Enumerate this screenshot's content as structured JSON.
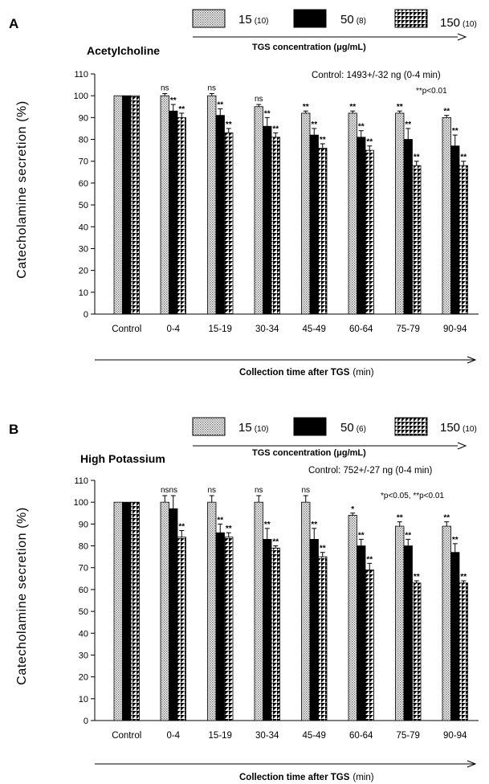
{
  "chart_data": [
    {
      "type": "bar",
      "panel": "A",
      "title": "Acetylcholine",
      "legend_title": "TGS  concentration  (μg/mL)",
      "legend": [
        {
          "name": "15",
          "n": "(10)"
        },
        {
          "name": "50",
          "n": "(8)"
        },
        {
          "name": "150",
          "n": "(10)"
        }
      ],
      "control_note": "Control: 1493+/-32 ng (0-4 min)",
      "p_note": "**p<0.01",
      "ylabel": "Catecholamine  secretion  (%)",
      "xlabel": "Collection time after TGS",
      "xlabel_unit": "(min)",
      "ylim": [
        0,
        110
      ],
      "yticks": [
        "0",
        "10",
        "20",
        "30",
        "40",
        "50",
        "60",
        "70",
        "80",
        "90",
        "100",
        "110"
      ],
      "control": {
        "label": "Control",
        "value": 100
      },
      "categories": [
        "0-4",
        "15-19",
        "30-34",
        "45-49",
        "60-64",
        "75-79",
        "90-94"
      ],
      "series": [
        {
          "name": "15",
          "values": [
            100,
            100,
            95,
            92,
            92,
            92,
            90
          ],
          "errors": [
            1,
            1,
            1,
            1,
            1,
            1,
            1
          ],
          "sig": [
            "ns",
            "ns",
            "ns",
            "**",
            "**",
            "**",
            "**"
          ]
        },
        {
          "name": "50",
          "values": [
            93,
            91,
            86,
            82,
            81,
            80,
            77
          ],
          "errors": [
            3,
            3,
            4,
            3,
            3,
            5,
            5
          ],
          "sig": [
            "**",
            "**",
            "**",
            "**",
            "**",
            "**",
            "**"
          ]
        },
        {
          "name": "150",
          "values": [
            90,
            83,
            81,
            76,
            75,
            68,
            68
          ],
          "errors": [
            2,
            2,
            2,
            2,
            2,
            2,
            2
          ],
          "sig": [
            "**",
            "**",
            "**",
            "**",
            "**",
            "**",
            "**"
          ]
        }
      ]
    },
    {
      "type": "bar",
      "panel": "B",
      "title": "High Potassium",
      "legend_title": "TGS  concentration  (μg/mL)",
      "legend": [
        {
          "name": "15",
          "n": "(10)"
        },
        {
          "name": "50",
          "n": "(6)"
        },
        {
          "name": "150",
          "n": "(10)"
        }
      ],
      "control_note": "Control: 752+/-27 ng (0-4 min)",
      "p_note": "*p<0.05, **p<0.01",
      "ylabel": "Catecholamine  secretion  (%)",
      "xlabel": "Collection time after TGS",
      "xlabel_unit": "(min)",
      "ylim": [
        0,
        110
      ],
      "yticks": [
        "0",
        "10",
        "20",
        "30",
        "40",
        "50",
        "60",
        "70",
        "80",
        "90",
        "100",
        "110"
      ],
      "control": {
        "label": "Control",
        "value": 100
      },
      "categories": [
        "0-4",
        "15-19",
        "30-34",
        "45-49",
        "60-64",
        "75-79",
        "90-94"
      ],
      "series": [
        {
          "name": "15",
          "values": [
            100,
            100,
            100,
            100,
            94,
            89,
            89
          ],
          "errors": [
            3,
            3,
            3,
            3,
            1,
            2,
            2
          ],
          "sig": [
            "ns",
            "ns",
            "ns",
            "ns",
            "*",
            "**",
            "**"
          ]
        },
        {
          "name": "50",
          "values": [
            97,
            86,
            83,
            83,
            80,
            80,
            77
          ],
          "errors": [
            6,
            4,
            5,
            5,
            3,
            3,
            4
          ],
          "sig": [
            "ns",
            "**",
            "**",
            "**",
            "**",
            "**",
            "**"
          ]
        },
        {
          "name": "150",
          "values": [
            84,
            84,
            79,
            75,
            69,
            63,
            63
          ],
          "errors": [
            3,
            2,
            1,
            2,
            3,
            1,
            1
          ],
          "sig": [
            "**",
            "**",
            "**",
            "**",
            "**",
            "**",
            "**"
          ]
        }
      ]
    }
  ]
}
